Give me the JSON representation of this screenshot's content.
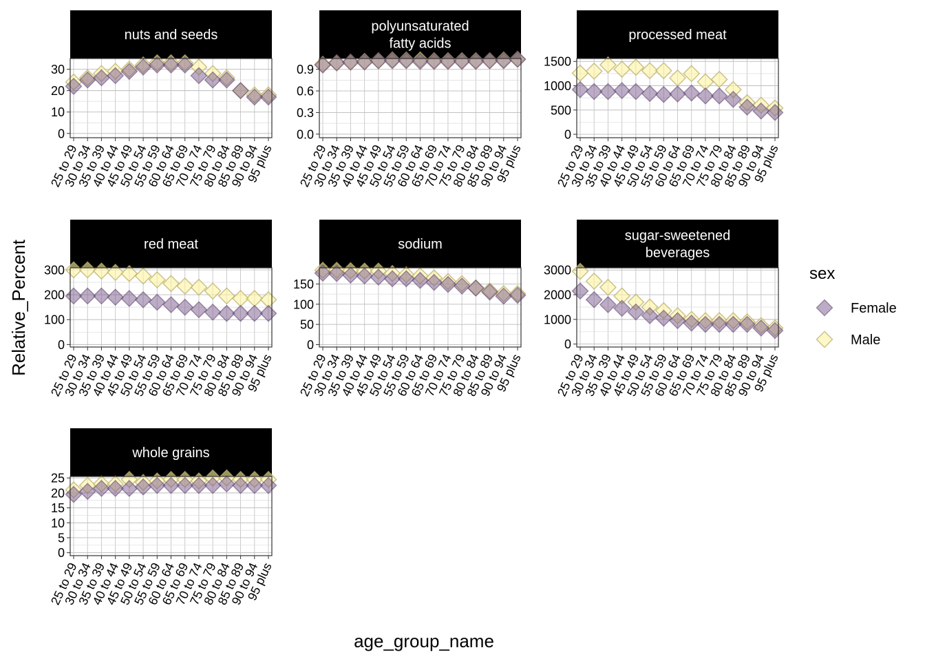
{
  "chart_data": {
    "type": "scatter",
    "xlabel": "age_group_name",
    "ylabel": "Relative_Percent",
    "categories": [
      "25 to 29",
      "30 to 34",
      "35 to 39",
      "40 to 44",
      "45 to 49",
      "50 to 54",
      "55 to 59",
      "60 to 64",
      "65 to 69",
      "70 to 74",
      "75 to 79",
      "80 to 84",
      "85 to 89",
      "90 to 94",
      "95 plus"
    ],
    "legend": {
      "title": "sex",
      "position": "right",
      "entries": [
        {
          "name": "Female",
          "color": "#7a5a8c"
        },
        {
          "name": "Male",
          "color": "#f8ed8a"
        }
      ]
    },
    "grid": true,
    "panels": [
      {
        "title": "nuts and seeds",
        "yticks": [
          "0",
          "10",
          "20",
          "30"
        ],
        "ylim": [
          -2,
          35
        ],
        "series": [
          {
            "name": "Female",
            "values": [
              22,
              25,
              26,
              27,
              29,
              31,
              32,
              32,
              32,
              27,
              25,
              25,
              20,
              17,
              17
            ]
          },
          {
            "name": "Male",
            "values": [
              24,
              26,
              28,
              29,
              30,
              32,
              33,
              33,
              33,
              31,
              28,
              26,
              20,
              18,
              18
            ]
          }
        ]
      },
      {
        "title": "polyunsaturated\nfatty acids",
        "yticks": [
          "0.0",
          "0.3",
          "0.6",
          "0.9"
        ],
        "ylim": [
          -0.05,
          1.05
        ],
        "series": [
          {
            "name": "Female",
            "values": [
              0.96,
              0.99,
              1.0,
              1.0,
              1.02,
              1.02,
              1.02,
              1.01,
              1.01,
              1.01,
              1.01,
              1.01,
              1.02,
              1.02,
              1.04
            ]
          },
          {
            "name": "Male",
            "values": [
              0.97,
              0.99,
              1.0,
              1.01,
              1.02,
              1.03,
              1.03,
              1.03,
              1.02,
              1.02,
              1.02,
              1.02,
              1.02,
              1.03,
              1.04
            ]
          }
        ]
      },
      {
        "title": "processed meat",
        "yticks": [
          "0",
          "500",
          "1000",
          "1500"
        ],
        "ylim": [
          -70,
          1560
        ],
        "series": [
          {
            "name": "Female",
            "values": [
              920,
              880,
              880,
              900,
              880,
              840,
              820,
              830,
              850,
              790,
              790,
              720,
              560,
              480,
              450
            ]
          },
          {
            "name": "Male",
            "values": [
              1260,
              1300,
              1430,
              1340,
              1380,
              1310,
              1310,
              1160,
              1250,
              1080,
              1130,
              920,
              650,
              600,
              540
            ]
          }
        ]
      },
      {
        "title": "red meat",
        "yticks": [
          "0",
          "100",
          "200",
          "300"
        ],
        "ylim": [
          -10,
          308
        ],
        "series": [
          {
            "name": "Female",
            "values": [
              195,
              195,
              195,
              190,
              185,
              180,
              170,
              160,
              150,
              140,
              130,
              125,
              125,
              125,
              125
            ]
          },
          {
            "name": "Male",
            "values": [
              300,
              300,
              295,
              290,
              285,
              275,
              260,
              245,
              235,
              230,
              215,
              195,
              185,
              185,
              180
            ]
          }
        ]
      },
      {
        "title": "sodium",
        "yticks": [
          "0",
          "50",
          "100",
          "150"
        ],
        "ylim": [
          -6,
          190
        ],
        "series": [
          {
            "name": "Female",
            "values": [
              177,
              176,
              172,
              170,
              167,
              163,
              163,
              159,
              154,
              149,
              145,
              140,
              130,
              120,
              122
            ]
          },
          {
            "name": "Male",
            "values": [
              184,
              184,
              183,
              182,
              182,
              176,
              173,
              170,
              165,
              156,
              151,
              140,
              133,
              126,
              126
            ]
          }
        ]
      },
      {
        "title": "sugar-sweetened\nbeverages",
        "yticks": [
          "0",
          "1000",
          "2000",
          "3000"
        ],
        "ylim": [
          -120,
          3090
        ],
        "series": [
          {
            "name": "Female",
            "values": [
              2150,
              1800,
              1600,
              1450,
              1300,
              1150,
              1050,
              950,
              850,
              800,
              800,
              800,
              800,
              650,
              550
            ]
          },
          {
            "name": "Male",
            "values": [
              2950,
              2550,
              2300,
              1950,
              1700,
              1500,
              1350,
              1150,
              1000,
              950,
              950,
              950,
              900,
              750,
              650
            ]
          }
        ]
      },
      {
        "title": "whole grains",
        "yticks": [
          "0",
          "5",
          "10",
          "15",
          "20",
          "25"
        ],
        "ylim": [
          -1,
          25.5
        ],
        "series": [
          {
            "name": "Female",
            "values": [
              19.5,
              20.5,
              21.5,
              21.5,
              21.5,
              22,
              22.5,
              22.5,
              22.5,
              22.5,
              22.5,
              23,
              22.5,
              22.5,
              22.5
            ]
          },
          {
            "name": "Male",
            "values": [
              21,
              22.5,
              23,
              23,
              24.5,
              23.5,
              24,
              24.5,
              24.5,
              24,
              25,
              25,
              24.5,
              24.5,
              24.5
            ]
          }
        ]
      }
    ]
  }
}
